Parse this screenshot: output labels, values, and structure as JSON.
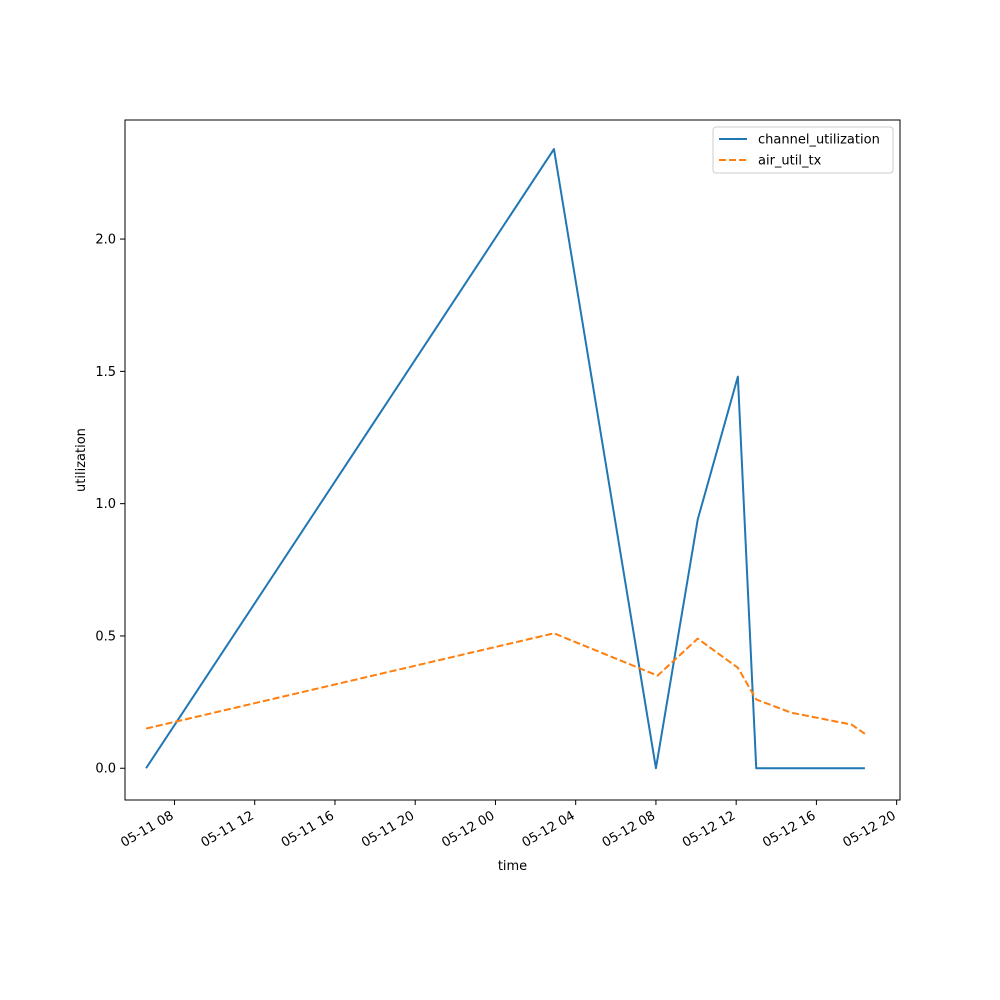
{
  "chart_data": {
    "type": "line",
    "title": "",
    "xlabel": "time",
    "ylabel": "utilization",
    "x_type": "datetime",
    "xlim": [
      "2025-05-11T05:32",
      "2025-05-12T20:10"
    ],
    "ylim": [
      -0.12,
      2.45
    ],
    "x_ticks": [
      {
        "t": "2025-05-11T08:00",
        "label": "05-11 08"
      },
      {
        "t": "2025-05-11T12:00",
        "label": "05-11 12"
      },
      {
        "t": "2025-05-11T16:00",
        "label": "05-11 16"
      },
      {
        "t": "2025-05-11T20:00",
        "label": "05-11 20"
      },
      {
        "t": "2025-05-12T00:00",
        "label": "05-12 00"
      },
      {
        "t": "2025-05-12T04:00",
        "label": "05-12 04"
      },
      {
        "t": "2025-05-12T08:00",
        "label": "05-12 08"
      },
      {
        "t": "2025-05-12T12:00",
        "label": "05-12 12"
      },
      {
        "t": "2025-05-12T16:00",
        "label": "05-12 16"
      },
      {
        "t": "2025-05-12T20:00",
        "label": "05-12 20"
      }
    ],
    "y_ticks": [
      {
        "v": 0.0,
        "label": "0.0"
      },
      {
        "v": 0.5,
        "label": "0.5"
      },
      {
        "v": 1.0,
        "label": "1.0"
      },
      {
        "v": 1.5,
        "label": "1.5"
      },
      {
        "v": 2.0,
        "label": "2.0"
      }
    ],
    "grid": false,
    "legend_position": "top-right",
    "series": [
      {
        "name": "channel_utilization",
        "color": "#1f77b4",
        "style": "solid",
        "points": [
          {
            "t": "2025-05-11T06:35",
            "v": 0.0
          },
          {
            "t": "2025-05-12T02:55",
            "v": 2.34
          },
          {
            "t": "2025-05-12T08:00",
            "v": 0.0
          },
          {
            "t": "2025-05-12T10:05",
            "v": 0.94
          },
          {
            "t": "2025-05-12T12:05",
            "v": 1.48
          },
          {
            "t": "2025-05-12T13:00",
            "v": 0.0
          },
          {
            "t": "2025-05-12T18:25",
            "v": 0.0
          }
        ]
      },
      {
        "name": "air_util_tx",
        "color": "#ff7f0e",
        "style": "dashed",
        "points": [
          {
            "t": "2025-05-11T06:35",
            "v": 0.15
          },
          {
            "t": "2025-05-12T02:55",
            "v": 0.51
          },
          {
            "t": "2025-05-12T08:05",
            "v": 0.35
          },
          {
            "t": "2025-05-12T10:05",
            "v": 0.49
          },
          {
            "t": "2025-05-12T12:05",
            "v": 0.38
          },
          {
            "t": "2025-05-12T13:00",
            "v": 0.26
          },
          {
            "t": "2025-05-12T14:45",
            "v": 0.21
          },
          {
            "t": "2025-05-12T17:45",
            "v": 0.165
          },
          {
            "t": "2025-05-12T18:25",
            "v": 0.13
          }
        ]
      }
    ]
  }
}
